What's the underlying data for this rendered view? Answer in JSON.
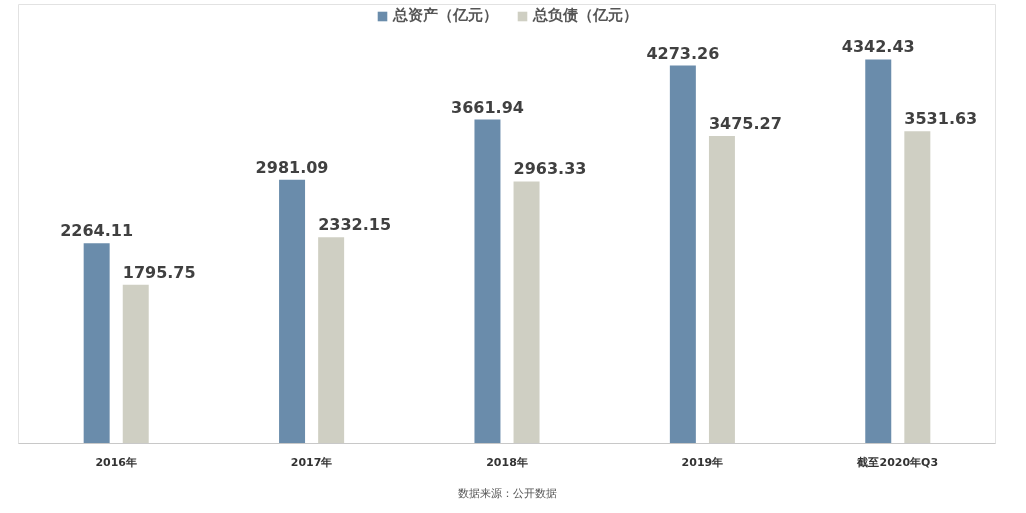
{
  "chart_data": {
    "type": "bar",
    "categories": [
      "2016年",
      "2017年",
      "2018年",
      "2019年",
      "截至2020年Q3"
    ],
    "series": [
      {
        "name": "总资产（亿元）",
        "color": "#6a8cab",
        "values": [
          2264.11,
          2981.09,
          3661.94,
          4273.26,
          4342.43
        ]
      },
      {
        "name": "总负债（亿元）",
        "color": "#cfcfc3",
        "values": [
          1795.75,
          2332.15,
          2963.33,
          3475.27,
          3531.63
        ]
      }
    ],
    "data_labels": true,
    "legend": "top",
    "grid": false,
    "annotations": [
      "数据来源：公开数据"
    ]
  }
}
